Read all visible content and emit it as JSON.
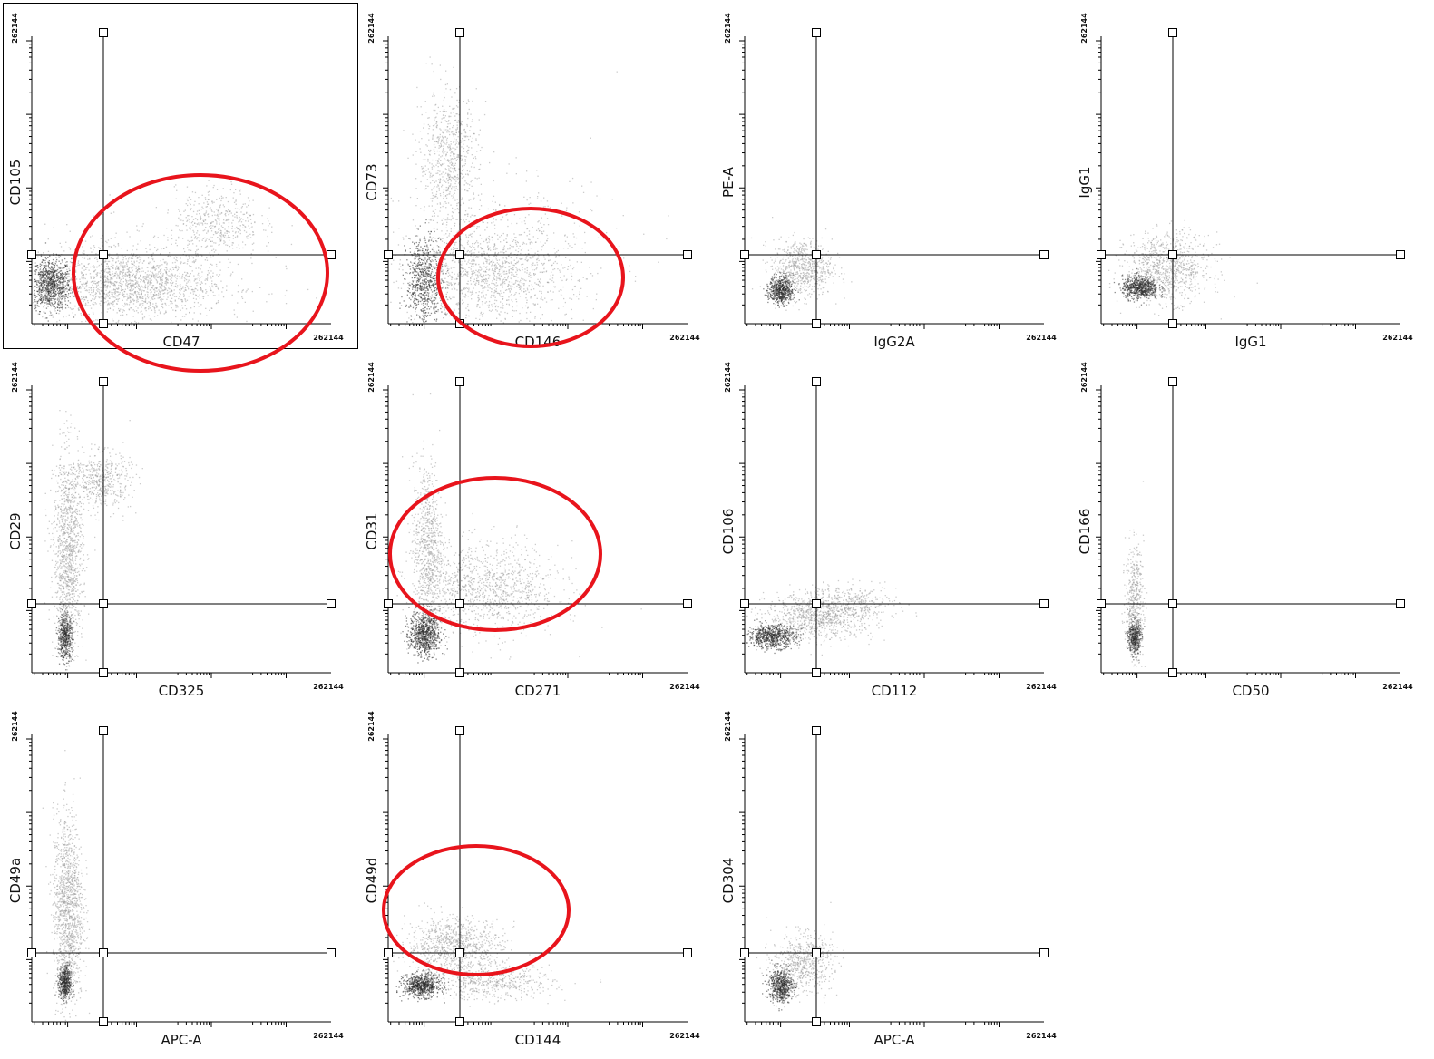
{
  "axis_max_label": "262144",
  "colors": {
    "density": "#2a2a2a",
    "scatter": "#9a9a9a",
    "gate_line": "#000000",
    "highlight_ellipse": "#e8141c"
  },
  "chart_data": [
    {
      "type": "scatter",
      "xlabel": "CD47",
      "ylabel": "CD105",
      "x_max": "262144",
      "y_max": "262144",
      "selected": true,
      "highlighted": true,
      "clusters": [
        {
          "x": 0.06,
          "y": 0.14,
          "sx": 0.035,
          "sy": 0.045,
          "n": 900,
          "dense": true
        },
        {
          "x": 0.32,
          "y": 0.14,
          "sx": 0.14,
          "sy": 0.06,
          "n": 1400
        },
        {
          "x": 0.62,
          "y": 0.36,
          "sx": 0.07,
          "sy": 0.06,
          "n": 450
        },
        {
          "x": 0.35,
          "y": 0.16,
          "sx": 0.22,
          "sy": 0.09,
          "n": 500
        }
      ]
    },
    {
      "type": "scatter",
      "xlabel": "CD146",
      "ylabel": "CD73",
      "x_max": "262144",
      "y_max": "262144",
      "selected": false,
      "highlighted": true,
      "clusters": [
        {
          "x": 0.12,
          "y": 0.15,
          "sx": 0.03,
          "sy": 0.08,
          "n": 700,
          "dense": true
        },
        {
          "x": 0.2,
          "y": 0.58,
          "sx": 0.05,
          "sy": 0.12,
          "n": 700
        },
        {
          "x": 0.34,
          "y": 0.18,
          "sx": 0.13,
          "sy": 0.08,
          "n": 1100
        },
        {
          "x": 0.38,
          "y": 0.25,
          "sx": 0.2,
          "sy": 0.15,
          "n": 400
        }
      ]
    },
    {
      "type": "scatter",
      "xlabel": "IgG2A",
      "ylabel": "PE-A",
      "x_max": "262144",
      "y_max": "262144",
      "selected": false,
      "highlighted": false,
      "clusters": [
        {
          "x": 0.12,
          "y": 0.12,
          "sx": 0.02,
          "sy": 0.025,
          "n": 600,
          "dense": true
        },
        {
          "x": 0.19,
          "y": 0.2,
          "sx": 0.05,
          "sy": 0.05,
          "n": 700
        }
      ]
    },
    {
      "type": "scatter",
      "xlabel": "IgG1",
      "ylabel": "IgG1",
      "x_max": "262144",
      "y_max": "262144",
      "selected": false,
      "highlighted": false,
      "clusters": [
        {
          "x": 0.13,
          "y": 0.13,
          "sx": 0.03,
          "sy": 0.02,
          "n": 700,
          "dense": true
        },
        {
          "x": 0.22,
          "y": 0.2,
          "sx": 0.07,
          "sy": 0.06,
          "n": 900
        }
      ]
    },
    {
      "type": "scatter",
      "xlabel": "CD325",
      "ylabel": "CD29",
      "x_max": "262144",
      "y_max": "262144",
      "selected": false,
      "highlighted": false,
      "clusters": [
        {
          "x": 0.11,
          "y": 0.13,
          "sx": 0.012,
          "sy": 0.04,
          "n": 500,
          "dense": true
        },
        {
          "x": 0.12,
          "y": 0.42,
          "sx": 0.025,
          "sy": 0.18,
          "n": 1200
        },
        {
          "x": 0.23,
          "y": 0.68,
          "sx": 0.05,
          "sy": 0.05,
          "n": 500
        }
      ]
    },
    {
      "type": "scatter",
      "xlabel": "CD271",
      "ylabel": "CD31",
      "x_max": "262144",
      "y_max": "262144",
      "selected": false,
      "highlighted": true,
      "clusters": [
        {
          "x": 0.12,
          "y": 0.14,
          "sx": 0.025,
          "sy": 0.04,
          "n": 800,
          "dense": true
        },
        {
          "x": 0.13,
          "y": 0.45,
          "sx": 0.025,
          "sy": 0.15,
          "n": 800
        },
        {
          "x": 0.33,
          "y": 0.3,
          "sx": 0.12,
          "sy": 0.08,
          "n": 1100
        }
      ]
    },
    {
      "type": "scatter",
      "xlabel": "CD112",
      "ylabel": "CD106",
      "x_max": "262144",
      "y_max": "262144",
      "selected": false,
      "highlighted": false,
      "clusters": [
        {
          "x": 0.09,
          "y": 0.13,
          "sx": 0.04,
          "sy": 0.02,
          "n": 700,
          "dense": true
        },
        {
          "x": 0.25,
          "y": 0.2,
          "sx": 0.09,
          "sy": 0.04,
          "n": 900
        },
        {
          "x": 0.35,
          "y": 0.25,
          "sx": 0.08,
          "sy": 0.03,
          "n": 300
        }
      ]
    },
    {
      "type": "scatter",
      "xlabel": "CD50",
      "ylabel": "CD166",
      "x_max": "262144",
      "y_max": "262144",
      "selected": false,
      "highlighted": false,
      "clusters": [
        {
          "x": 0.11,
          "y": 0.13,
          "sx": 0.01,
          "sy": 0.03,
          "n": 500,
          "dense": true
        },
        {
          "x": 0.11,
          "y": 0.25,
          "sx": 0.015,
          "sy": 0.1,
          "n": 500
        }
      ]
    },
    {
      "type": "scatter",
      "xlabel": "APC-A",
      "ylabel": "CD49a",
      "x_max": "262144",
      "y_max": "262144",
      "selected": false,
      "highlighted": false,
      "clusters": [
        {
          "x": 0.11,
          "y": 0.14,
          "sx": 0.01,
          "sy": 0.03,
          "n": 500,
          "dense": true
        },
        {
          "x": 0.12,
          "y": 0.4,
          "sx": 0.025,
          "sy": 0.17,
          "n": 1300
        }
      ]
    },
    {
      "type": "scatter",
      "xlabel": "CD144",
      "ylabel": "CD49d",
      "x_max": "262144",
      "y_max": "262144",
      "selected": false,
      "highlighted": true,
      "clusters": [
        {
          "x": 0.11,
          "y": 0.13,
          "sx": 0.03,
          "sy": 0.02,
          "n": 700,
          "dense": true
        },
        {
          "x": 0.22,
          "y": 0.27,
          "sx": 0.08,
          "sy": 0.05,
          "n": 900
        },
        {
          "x": 0.35,
          "y": 0.14,
          "sx": 0.1,
          "sy": 0.03,
          "n": 500
        }
      ]
    },
    {
      "type": "scatter",
      "xlabel": "APC-A",
      "ylabel": "CD304",
      "x_max": "262144",
      "y_max": "262144",
      "selected": false,
      "highlighted": false,
      "clusters": [
        {
          "x": 0.12,
          "y": 0.13,
          "sx": 0.02,
          "sy": 0.03,
          "n": 600,
          "dense": true
        },
        {
          "x": 0.19,
          "y": 0.21,
          "sx": 0.05,
          "sy": 0.05,
          "n": 600
        }
      ]
    }
  ]
}
